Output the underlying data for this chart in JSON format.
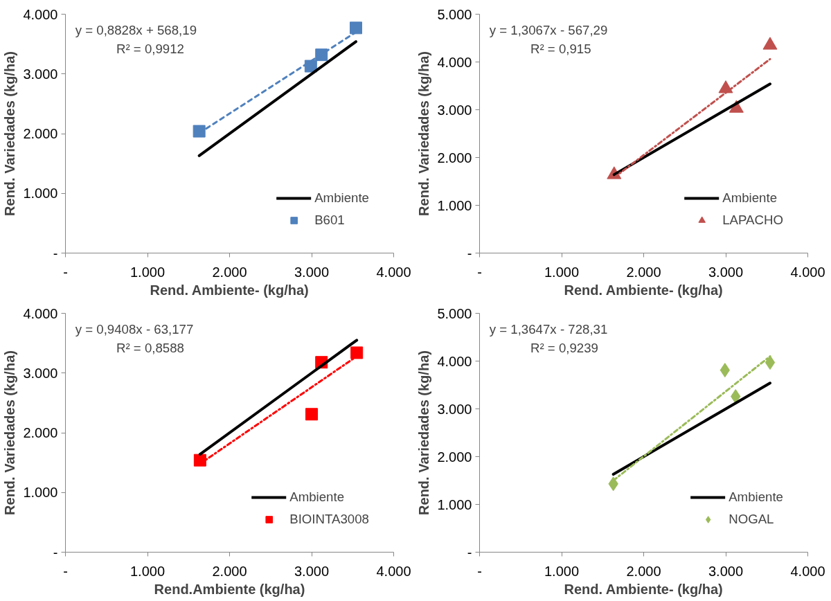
{
  "chart_data": [
    {
      "type": "scatter",
      "xlabel": "Rend. Ambiente- (kg/ha)",
      "ylabel": "Rend. Variedades (kg/ha)",
      "annotations": [
        "y = 0,8828x + 568,19",
        "R² = 0,9912"
      ],
      "xlim": [
        0,
        4000
      ],
      "ylim": [
        0,
        4000
      ],
      "xticks": [
        {
          "value": 0,
          "label": "-"
        },
        {
          "value": 1000,
          "label": "1.000"
        },
        {
          "value": 2000,
          "label": "2.000"
        },
        {
          "value": 3000,
          "label": "3.000"
        },
        {
          "value": 4000,
          "label": "4.000"
        }
      ],
      "yticks": [
        {
          "value": 0,
          "label": "-"
        },
        {
          "value": 1000,
          "label": "1.000"
        },
        {
          "value": 2000,
          "label": "2.000"
        },
        {
          "value": 3000,
          "label": "3.000"
        },
        {
          "value": 4000,
          "label": "4.000"
        }
      ],
      "grid": false,
      "legend": "bottom right",
      "series": [
        {
          "type": "line",
          "name": "Ambiente",
          "color": "#000000",
          "marker": "none",
          "line_style": "solid",
          "x": [
            1630,
            2990,
            3120,
            3540
          ],
          "values": [
            1630,
            2990,
            3120,
            3540
          ]
        },
        {
          "name": "B601",
          "color": "#4f81bd",
          "marker": "square",
          "x": [
            1630,
            2990,
            3120,
            3540
          ],
          "values": [
            2040,
            3130,
            3320,
            3770
          ]
        },
        {
          "type": "line",
          "color": "#4f81bd",
          "marker": "none",
          "line_style": "dashed",
          "x": [
            1630,
            3540
          ],
          "values": [
            2010,
            3700
          ]
        }
      ]
    },
    {
      "type": "scatter",
      "xlabel": "Rend. Ambiente- (kg/ha)",
      "ylabel": "Rend. Variedades (kg/ha)",
      "annotations": [
        "y = 1,3067x - 567,29",
        "R² = 0,915"
      ],
      "xlim": [
        0,
        4000
      ],
      "ylim": [
        0,
        5000
      ],
      "xticks": [
        {
          "value": 0,
          "label": "-"
        },
        {
          "value": 1000,
          "label": "1.000"
        },
        {
          "value": 2000,
          "label": "2.000"
        },
        {
          "value": 3000,
          "label": "3.000"
        },
        {
          "value": 4000,
          "label": "4.000"
        }
      ],
      "yticks": [
        {
          "value": 0,
          "label": "-"
        },
        {
          "value": 1000,
          "label": "1.000"
        },
        {
          "value": 2000,
          "label": "2.000"
        },
        {
          "value": 3000,
          "label": "3.000"
        },
        {
          "value": 4000,
          "label": "4.000"
        },
        {
          "value": 5000,
          "label": "5.000"
        }
      ],
      "grid": false,
      "legend": "bottom right",
      "series": [
        {
          "type": "line",
          "name": "Ambiente",
          "color": "#000000",
          "marker": "none",
          "line_style": "solid",
          "x": [
            1640,
            3000,
            3130,
            3540
          ],
          "values": [
            1640,
            3000,
            3130,
            3540
          ]
        },
        {
          "name": "LAPACHO",
          "color": "#c0504d",
          "marker": "triangle",
          "x": [
            1640,
            3000,
            3130,
            3540
          ],
          "values": [
            1640,
            3440,
            3030,
            4350
          ]
        },
        {
          "type": "line",
          "color": "#c0504d",
          "marker": "none",
          "line_style": "dashdot",
          "x": [
            1640,
            3540
          ],
          "values": [
            1580,
            4060
          ]
        }
      ]
    },
    {
      "type": "scatter",
      "xlabel": "Rend.Ambiente (kg/ha)",
      "ylabel": "Rend. Variedades (kg/ha)",
      "annotations": [
        "y = 0,9408x - 63,177",
        "R² = 0,8588"
      ],
      "xlim": [
        0,
        4000
      ],
      "ylim": [
        0,
        4000
      ],
      "xticks": [
        {
          "value": 0,
          "label": "-"
        },
        {
          "value": 1000,
          "label": "1.000"
        },
        {
          "value": 2000,
          "label": "2.000"
        },
        {
          "value": 3000,
          "label": "3.000"
        },
        {
          "value": 4000,
          "label": "4.000"
        }
      ],
      "yticks": [
        {
          "value": 0,
          "label": "-"
        },
        {
          "value": 1000,
          "label": "1.000"
        },
        {
          "value": 2000,
          "label": "2.000"
        },
        {
          "value": 3000,
          "label": "3.000"
        },
        {
          "value": 4000,
          "label": "4.000"
        }
      ],
      "grid": false,
      "legend": "bottom right",
      "series": [
        {
          "type": "line",
          "name": "Ambiente",
          "color": "#000000",
          "marker": "none",
          "line_style": "solid",
          "x": [
            1640,
            3000,
            3120,
            3550
          ],
          "values": [
            1640,
            3000,
            3120,
            3550
          ]
        },
        {
          "name": "BIOINTA3008",
          "color": "#ff0000",
          "marker": "square",
          "x": [
            1640,
            3000,
            3120,
            3550
          ],
          "values": [
            1540,
            2310,
            3180,
            3340
          ]
        },
        {
          "type": "line",
          "color": "#ff0000",
          "marker": "none",
          "line_style": "dashdot",
          "x": [
            1640,
            3550
          ],
          "values": [
            1480,
            3280
          ]
        }
      ]
    },
    {
      "type": "scatter",
      "xlabel": "Rend. Ambiente- (kg/ha)",
      "ylabel": "Rend. Variedades (kg/ha)",
      "annotations": [
        "y = 1,3647x - 728,31",
        "R² = 0,9239"
      ],
      "xlim": [
        0,
        4000
      ],
      "ylim": [
        0,
        5000
      ],
      "xticks": [
        {
          "value": 0,
          "label": "-"
        },
        {
          "value": 1000,
          "label": "1.000"
        },
        {
          "value": 2000,
          "label": "2.000"
        },
        {
          "value": 3000,
          "label": "3.000"
        },
        {
          "value": 4000,
          "label": "4.000"
        }
      ],
      "yticks": [
        {
          "value": 0,
          "label": "-"
        },
        {
          "value": 1000,
          "label": "1.000"
        },
        {
          "value": 2000,
          "label": "2.000"
        },
        {
          "value": 3000,
          "label": "3.000"
        },
        {
          "value": 4000,
          "label": "4.000"
        },
        {
          "value": 5000,
          "label": "5.000"
        }
      ],
      "grid": false,
      "legend": "bottom right",
      "series": [
        {
          "type": "line",
          "name": "Ambiente",
          "color": "#000000",
          "marker": "none",
          "line_style": "solid",
          "x": [
            1630,
            2990,
            3120,
            3540
          ],
          "values": [
            1630,
            2990,
            3120,
            3540
          ]
        },
        {
          "name": "NOGAL",
          "color": "#9bbb59",
          "marker": "diamond",
          "x": [
            1630,
            2990,
            3120,
            3540
          ],
          "values": [
            1430,
            3810,
            3260,
            3970
          ]
        },
        {
          "type": "line",
          "color": "#9bbb59",
          "marker": "none",
          "line_style": "dashdot",
          "x": [
            1630,
            3540
          ],
          "values": [
            1500,
            4100
          ]
        }
      ]
    }
  ]
}
